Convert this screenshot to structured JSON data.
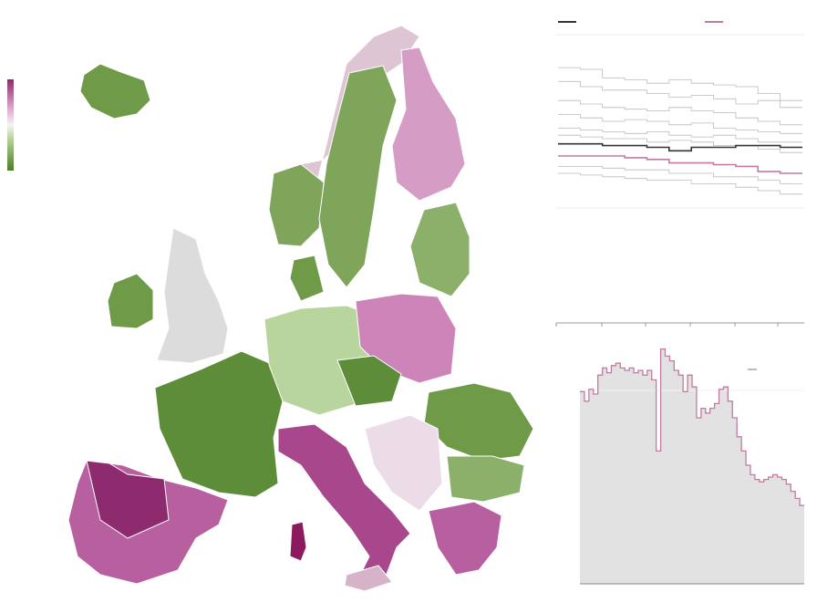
{
  "chart_data": [
    {
      "type": "line",
      "ylim": [
        0,
        100
      ],
      "series": [
        {
          "color": "#333333",
          "values": [
            37,
            37,
            36,
            36,
            35,
            33,
            35,
            35,
            36,
            36,
            35
          ]
        },
        {
          "color": "#c27ba0",
          "values": [
            30,
            30,
            30,
            29,
            28,
            26,
            26,
            25,
            24,
            21,
            20
          ]
        },
        {
          "color": "#bbbbbb",
          "values": [
            81,
            80,
            75,
            74,
            72,
            74,
            72,
            71,
            70,
            66,
            62
          ]
        },
        {
          "color": "#bbbbbb",
          "values": [
            73,
            70,
            68,
            68,
            66,
            64,
            65,
            63,
            60,
            62,
            58
          ]
        },
        {
          "color": "#bbbbbb",
          "values": [
            62,
            60,
            58,
            57,
            56,
            58,
            56,
            55,
            52,
            50,
            48
          ]
        },
        {
          "color": "#bbbbbb",
          "values": [
            54,
            52,
            50,
            51,
            50,
            48,
            49,
            46,
            45,
            44,
            43
          ]
        },
        {
          "color": "#bbbbbb",
          "values": [
            46,
            45,
            44,
            43,
            44,
            42,
            41,
            42,
            40,
            38,
            38
          ]
        },
        {
          "color": "#bbbbbb",
          "values": [
            42,
            41,
            40,
            40,
            38,
            39,
            38,
            36,
            36,
            34,
            32
          ]
        },
        {
          "color": "#bbbbbb",
          "values": [
            24,
            24,
            23,
            22,
            22,
            20,
            20,
            18,
            18,
            16,
            14
          ]
        },
        {
          "color": "#bbbbbb",
          "values": [
            20,
            19,
            18,
            17,
            16,
            16,
            14,
            14,
            12,
            10,
            8
          ]
        }
      ]
    },
    {
      "type": "area",
      "ylim": [
        0,
        100
      ],
      "color": "#c27ba0",
      "fill": "#e2e2e2",
      "values": [
        81,
        77,
        82,
        80,
        88,
        91,
        89,
        92,
        93,
        91,
        90,
        91,
        89,
        90,
        88,
        90,
        86,
        56,
        99,
        96,
        94,
        90,
        88,
        81,
        88,
        83,
        70,
        74,
        72,
        74,
        76,
        82,
        83,
        77,
        70,
        62,
        56,
        50,
        46,
        44,
        43,
        44,
        45,
        46,
        45,
        44,
        42,
        39,
        36,
        33
      ]
    }
  ]
}
